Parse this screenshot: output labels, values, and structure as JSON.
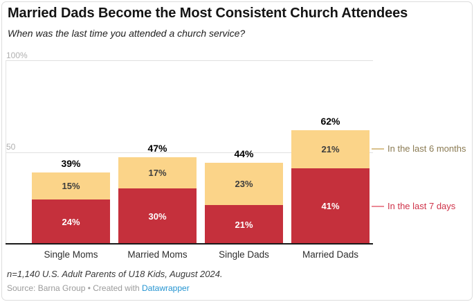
{
  "chart_data": {
    "type": "bar",
    "stacked": true,
    "title": "Married Dads Become the Most Consistent Church Attendees",
    "subtitle": "When was the last time you attended a church service?",
    "categories": [
      "Single Moms",
      "Married Moms",
      "Single Dads",
      "Married Dads"
    ],
    "series": [
      {
        "name": "In the last 7 days",
        "color": "#c5303c",
        "values": [
          24,
          30,
          21,
          41
        ]
      },
      {
        "name": "In the last 6 months",
        "color": "#fbd489",
        "values": [
          15,
          17,
          23,
          21
        ]
      }
    ],
    "totals": [
      39,
      47,
      44,
      62
    ],
    "value_suffix": "%",
    "y_axis": {
      "max": 100,
      "ticks": [
        {
          "label": "100%",
          "value": 100
        },
        {
          "label": "50",
          "value": 50
        }
      ],
      "grid": true
    },
    "legend_position": "right-direct-labels"
  },
  "legend": {
    "months": {
      "label": "In the last 6 months",
      "text_color": "#8a7a52",
      "line_color": "#d9c18c"
    },
    "days": {
      "label": "In the last 7 days",
      "text_color": "#cf3249",
      "line_color": "#eb8a96"
    }
  },
  "footer": {
    "note": "n=1,140 U.S. Adult Parents of U18 Kids, August 2024.",
    "source_text": "Source: Barna Group • Created with",
    "link_label": "Datawrapper"
  }
}
